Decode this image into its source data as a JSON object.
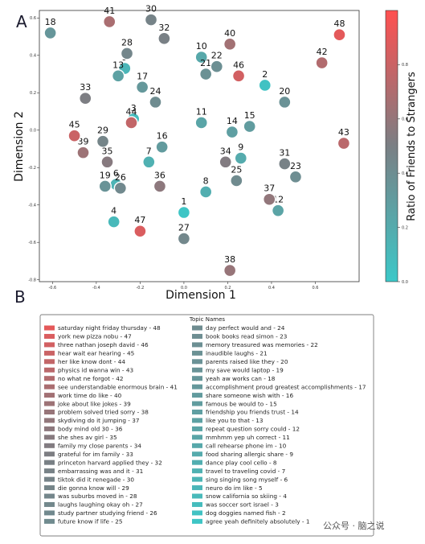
{
  "panels": {
    "a": "A",
    "b": "B"
  },
  "chart_data": {
    "type": "scatter",
    "xlabel": "Dimension 1",
    "ylabel": "Dimension 2",
    "xlim": [
      -0.66,
      0.8
    ],
    "ylim": [
      -0.81,
      0.64
    ],
    "xticks": [
      -0.6,
      -0.4,
      -0.2,
      0.0,
      0.2,
      0.4,
      0.6
    ],
    "yticks": [
      0.6,
      0.4,
      0.2,
      0.0,
      -0.2,
      -0.4,
      -0.6,
      -0.8
    ],
    "colorbar": {
      "label": "Ratio of Friends to Strangers",
      "ticks": [
        0.0,
        0.2,
        0.4,
        0.6,
        0.8
      ],
      "range": [
        0,
        1
      ],
      "low_color": "#3cc8c8",
      "mid_color": "#7a7f84",
      "high_color": "#ff5050"
    },
    "points": [
      {
        "id": 1,
        "x": 0.0,
        "y": -0.44,
        "ratio": 0.02
      },
      {
        "id": 2,
        "x": 0.37,
        "y": 0.24,
        "ratio": 0.04
      },
      {
        "id": 3,
        "x": -0.23,
        "y": 0.06,
        "ratio": 0.08
      },
      {
        "id": 4,
        "x": -0.32,
        "y": -0.49,
        "ratio": 0.1
      },
      {
        "id": 5,
        "x": -0.27,
        "y": 0.33,
        "ratio": 0.12
      },
      {
        "id": 6,
        "x": -0.31,
        "y": -0.29,
        "ratio": 0.14
      },
      {
        "id": 7,
        "x": -0.16,
        "y": -0.17,
        "ratio": 0.16
      },
      {
        "id": 8,
        "x": 0.1,
        "y": -0.33,
        "ratio": 0.18
      },
      {
        "id": 9,
        "x": 0.26,
        "y": -0.15,
        "ratio": 0.2
      },
      {
        "id": 10,
        "x": 0.08,
        "y": 0.39,
        "ratio": 0.22
      },
      {
        "id": 11,
        "x": 0.08,
        "y": 0.04,
        "ratio": 0.24
      },
      {
        "id": 12,
        "x": 0.43,
        "y": -0.43,
        "ratio": 0.25
      },
      {
        "id": 13,
        "x": -0.3,
        "y": 0.29,
        "ratio": 0.27
      },
      {
        "id": 14,
        "x": 0.22,
        "y": -0.01,
        "ratio": 0.28
      },
      {
        "id": 15,
        "x": 0.3,
        "y": 0.02,
        "ratio": 0.3
      },
      {
        "id": 16,
        "x": -0.1,
        "y": -0.09,
        "ratio": 0.31
      },
      {
        "id": 17,
        "x": -0.19,
        "y": 0.23,
        "ratio": 0.33
      },
      {
        "id": 18,
        "x": -0.61,
        "y": 0.52,
        "ratio": 0.34
      },
      {
        "id": 19,
        "x": -0.36,
        "y": -0.3,
        "ratio": 0.36
      },
      {
        "id": 20,
        "x": 0.46,
        "y": 0.15,
        "ratio": 0.37
      },
      {
        "id": 21,
        "x": 0.1,
        "y": 0.3,
        "ratio": 0.38
      },
      {
        "id": 22,
        "x": 0.15,
        "y": 0.34,
        "ratio": 0.39
      },
      {
        "id": 23,
        "x": 0.51,
        "y": -0.25,
        "ratio": 0.4
      },
      {
        "id": 24,
        "x": -0.13,
        "y": 0.15,
        "ratio": 0.41
      },
      {
        "id": 25,
        "x": 0.24,
        "y": -0.27,
        "ratio": 0.42
      },
      {
        "id": 26,
        "x": -0.29,
        "y": -0.31,
        "ratio": 0.43
      },
      {
        "id": 27,
        "x": 0.0,
        "y": -0.58,
        "ratio": 0.44
      },
      {
        "id": 28,
        "x": -0.26,
        "y": 0.41,
        "ratio": 0.45
      },
      {
        "id": 29,
        "x": -0.37,
        "y": -0.06,
        "ratio": 0.46
      },
      {
        "id": 30,
        "x": -0.15,
        "y": 0.59,
        "ratio": 0.47
      },
      {
        "id": 31,
        "x": 0.46,
        "y": -0.18,
        "ratio": 0.48
      },
      {
        "id": 32,
        "x": -0.09,
        "y": 0.49,
        "ratio": 0.49
      },
      {
        "id": 33,
        "x": -0.45,
        "y": 0.17,
        "ratio": 0.51
      },
      {
        "id": 34,
        "x": 0.19,
        "y": -0.17,
        "ratio": 0.53
      },
      {
        "id": 35,
        "x": -0.35,
        "y": -0.17,
        "ratio": 0.55
      },
      {
        "id": 36,
        "x": -0.11,
        "y": -0.3,
        "ratio": 0.57
      },
      {
        "id": 37,
        "x": 0.39,
        "y": -0.37,
        "ratio": 0.59
      },
      {
        "id": 38,
        "x": 0.21,
        "y": -0.75,
        "ratio": 0.61
      },
      {
        "id": 39,
        "x": -0.46,
        "y": -0.12,
        "ratio": 0.63
      },
      {
        "id": 40,
        "x": 0.21,
        "y": 0.46,
        "ratio": 0.65
      },
      {
        "id": 41,
        "x": -0.34,
        "y": 0.58,
        "ratio": 0.68
      },
      {
        "id": 42,
        "x": 0.63,
        "y": 0.36,
        "ratio": 0.71
      },
      {
        "id": 43,
        "x": 0.73,
        "y": -0.07,
        "ratio": 0.74
      },
      {
        "id": 44,
        "x": -0.24,
        "y": 0.04,
        "ratio": 0.77
      },
      {
        "id": 45,
        "x": -0.5,
        "y": -0.03,
        "ratio": 0.8
      },
      {
        "id": 46,
        "x": 0.25,
        "y": 0.29,
        "ratio": 0.83
      },
      {
        "id": 47,
        "x": -0.2,
        "y": -0.54,
        "ratio": 0.86
      },
      {
        "id": 48,
        "x": 0.71,
        "y": 0.51,
        "ratio": 0.9
      }
    ]
  },
  "legend": {
    "title": "Topic Names",
    "col1": [
      {
        "text": "saturday night friday thursday - 48",
        "ratio": 0.9
      },
      {
        "text": "york new pizza nobu - 47",
        "ratio": 0.86
      },
      {
        "text": "three nathan joseph david - 46",
        "ratio": 0.83
      },
      {
        "text": "hear wait ear hearing - 45",
        "ratio": 0.8
      },
      {
        "text": "her like know dont - 44",
        "ratio": 0.77
      },
      {
        "text": "physics id wanna win - 43",
        "ratio": 0.74
      },
      {
        "text": "no what ne forgot - 42",
        "ratio": 0.71
      },
      {
        "text": "see understandable enormous brain - 41",
        "ratio": 0.68
      },
      {
        "text": "work time do like - 40",
        "ratio": 0.65
      },
      {
        "text": "joke about like jokes - 39",
        "ratio": 0.63
      },
      {
        "text": "problem solved tried sorry - 38",
        "ratio": 0.61
      },
      {
        "text": "skydiving do it jumping - 37",
        "ratio": 0.59
      },
      {
        "text": "body mind old 30 - 36",
        "ratio": 0.57
      },
      {
        "text": "she shes av girl - 35",
        "ratio": 0.55
      },
      {
        "text": "family my close parents - 34",
        "ratio": 0.53
      },
      {
        "text": "grateful for im family - 33",
        "ratio": 0.51
      },
      {
        "text": "princeton harvard applied they - 32",
        "ratio": 0.49
      },
      {
        "text": "embarrassing was and it - 31",
        "ratio": 0.48
      },
      {
        "text": "tiktok did it renegade - 30",
        "ratio": 0.47
      },
      {
        "text": "die gonna know will - 29",
        "ratio": 0.46
      },
      {
        "text": "was suburbs moved in - 28",
        "ratio": 0.45
      },
      {
        "text": "laughs laughing okay oh - 27",
        "ratio": 0.44
      },
      {
        "text": "study partner studying friend - 26",
        "ratio": 0.43
      },
      {
        "text": "future know if life - 25",
        "ratio": 0.42
      }
    ],
    "col2": [
      {
        "text": "day perfect would and - 24",
        "ratio": 0.41
      },
      {
        "text": "book books read simon - 23",
        "ratio": 0.4
      },
      {
        "text": "memory treasured was memories - 22",
        "ratio": 0.39
      },
      {
        "text": "inaudible laughs - 21",
        "ratio": 0.38
      },
      {
        "text": "parents raised like they - 20",
        "ratio": 0.37
      },
      {
        "text": "my save would laptop - 19",
        "ratio": 0.36
      },
      {
        "text": "yeah aw works can - 18",
        "ratio": 0.34
      },
      {
        "text": "accomplishment proud greatest accomplishments - 17",
        "ratio": 0.33
      },
      {
        "text": "share someone wish with - 16",
        "ratio": 0.31
      },
      {
        "text": "famous be would to - 15",
        "ratio": 0.3
      },
      {
        "text": "friendship you friends trust - 14",
        "ratio": 0.28
      },
      {
        "text": "like you to that - 13",
        "ratio": 0.27
      },
      {
        "text": "repeat question sorry could - 12",
        "ratio": 0.25
      },
      {
        "text": "mmhmm yep uh correct - 11",
        "ratio": 0.24
      },
      {
        "text": "call rehearse phone im - 10",
        "ratio": 0.22
      },
      {
        "text": "food sharing allergic share - 9",
        "ratio": 0.2
      },
      {
        "text": "dance play cool cello - 8",
        "ratio": 0.18
      },
      {
        "text": "travel to traveling covid - 7",
        "ratio": 0.16
      },
      {
        "text": "sing singing song myself - 6",
        "ratio": 0.14
      },
      {
        "text": "neuro do im like - 5",
        "ratio": 0.12
      },
      {
        "text": "snow california so skiing - 4",
        "ratio": 0.1
      },
      {
        "text": "was soccer sort israel - 3",
        "ratio": 0.08
      },
      {
        "text": "dog doggies named fish - 2",
        "ratio": 0.04
      },
      {
        "text": "agree yeah definitely absolutely - 1",
        "ratio": 0.02
      }
    ]
  },
  "watermark": "公众号 · 脑之说"
}
